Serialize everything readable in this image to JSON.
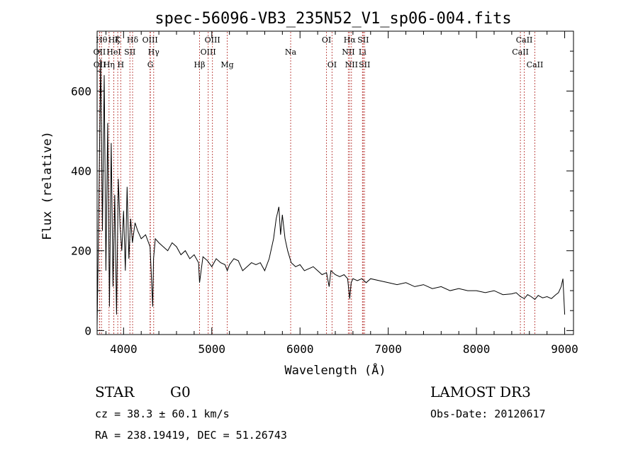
{
  "chart_data": {
    "type": "line",
    "title": "spec-56096-VB3_235N52_V1_sp06-004.fits",
    "xlabel": "Wavelength (Å)",
    "ylabel": "Flux (relative)",
    "xlim": [
      3700,
      9100
    ],
    "ylim": [
      -10,
      750
    ],
    "xticks": [
      4000,
      5000,
      6000,
      7000,
      8000,
      9000
    ],
    "yticks": [
      0,
      200,
      400,
      600
    ],
    "series": [
      {
        "name": "spectrum",
        "x": [
          3700,
          3720,
          3740,
          3760,
          3780,
          3800,
          3820,
          3840,
          3860,
          3880,
          3900,
          3920,
          3940,
          3960,
          3980,
          4000,
          4020,
          4040,
          4060,
          4080,
          4100,
          4130,
          4160,
          4200,
          4250,
          4300,
          4330,
          4340,
          4360,
          4400,
          4450,
          4500,
          4550,
          4600,
          4650,
          4700,
          4750,
          4800,
          4850,
          4861,
          4900,
          4950,
          5000,
          5050,
          5100,
          5150,
          5175,
          5200,
          5250,
          5300,
          5350,
          5400,
          5450,
          5500,
          5550,
          5600,
          5650,
          5700,
          5730,
          5760,
          5780,
          5800,
          5830,
          5860,
          5900,
          5950,
          6000,
          6050,
          6100,
          6150,
          6200,
          6250,
          6300,
          6330,
          6350,
          6400,
          6450,
          6500,
          6540,
          6563,
          6580,
          6600,
          6650,
          6700,
          6750,
          6800,
          6900,
          7000,
          7100,
          7200,
          7300,
          7400,
          7500,
          7600,
          7700,
          7800,
          7900,
          8000,
          8100,
          8200,
          8300,
          8400,
          8450,
          8500,
          8542,
          8580,
          8620,
          8662,
          8700,
          8750,
          8800,
          8850,
          8900,
          8930,
          8960,
          8980,
          9000
        ],
        "y": [
          10,
          320,
          680,
          250,
          640,
          150,
          520,
          60,
          470,
          110,
          340,
          40,
          380,
          260,
          200,
          300,
          150,
          360,
          180,
          280,
          220,
          270,
          250,
          230,
          240,
          210,
          60,
          180,
          230,
          220,
          210,
          200,
          220,
          210,
          190,
          200,
          180,
          190,
          170,
          120,
          185,
          175,
          160,
          180,
          170,
          165,
          150,
          165,
          180,
          175,
          150,
          160,
          170,
          165,
          170,
          150,
          180,
          230,
          280,
          310,
          240,
          290,
          230,
          200,
          170,
          160,
          165,
          150,
          155,
          160,
          150,
          140,
          145,
          110,
          150,
          140,
          135,
          140,
          130,
          80,
          120,
          130,
          125,
          130,
          120,
          130,
          125,
          120,
          115,
          120,
          110,
          115,
          105,
          110,
          100,
          105,
          100,
          100,
          95,
          100,
          90,
          92,
          95,
          85,
          80,
          90,
          85,
          78,
          88,
          82,
          85,
          80,
          90,
          95,
          110,
          130,
          40
        ]
      }
    ],
    "lines": [
      {
        "label": "OII",
        "wavelength": 3727,
        "row": 1
      },
      {
        "label": "OII",
        "wavelength": 3729,
        "row": 2
      },
      {
        "label": "Hθ",
        "wavelength": 3750,
        "row": 0
      },
      {
        "label": "Hη",
        "wavelength": 3835,
        "row": 2
      },
      {
        "label": "Hζ",
        "wavelength": 3889,
        "row": 0
      },
      {
        "label": "HeI",
        "wavelength": 3889,
        "row": 1
      },
      {
        "label": "K",
        "wavelength": 3934,
        "row": 0
      },
      {
        "label": "H",
        "wavelength": 3968,
        "row": 2
      },
      {
        "label": "SII",
        "wavelength": 4072,
        "row": 1
      },
      {
        "label": "Hδ",
        "wavelength": 4102,
        "row": 0
      },
      {
        "label": "OIII",
        "wavelength": 4300,
        "row": 0
      },
      {
        "label": "Hγ",
        "wavelength": 4341,
        "row": 1
      },
      {
        "label": "G",
        "wavelength": 4304,
        "row": 2
      },
      {
        "label": "Hβ",
        "wavelength": 4861,
        "row": 2
      },
      {
        "label": "OIII",
        "wavelength": 4959,
        "row": 1
      },
      {
        "label": "OIII",
        "wavelength": 5007,
        "row": 0
      },
      {
        "label": "Mg",
        "wavelength": 5175,
        "row": 2
      },
      {
        "label": "Na",
        "wavelength": 5894,
        "row": 1
      },
      {
        "label": "OI",
        "wavelength": 6300,
        "row": 0
      },
      {
        "label": "OI",
        "wavelength": 6363,
        "row": 2
      },
      {
        "label": "NII",
        "wavelength": 6548,
        "row": 1
      },
      {
        "label": "Hα",
        "wavelength": 6563,
        "row": 0
      },
      {
        "label": "NII",
        "wavelength": 6583,
        "row": 2
      },
      {
        "label": "Li",
        "wavelength": 6708,
        "row": 1
      },
      {
        "label": "SII",
        "wavelength": 6716,
        "row": 0
      },
      {
        "label": "SII",
        "wavelength": 6731,
        "row": 2
      },
      {
        "label": "CaII",
        "wavelength": 8498,
        "row": 1
      },
      {
        "label": "CaII",
        "wavelength": 8542,
        "row": 0
      },
      {
        "label": "CaII",
        "wavelength": 8662,
        "row": 2
      }
    ]
  },
  "info": {
    "class": "STAR",
    "subclass": "G0",
    "release": "LAMOST DR3",
    "cz": "cz = 38.3 ± 60.1 km/s",
    "obs_date": "Obs-Date: 20120617",
    "radec": "RA = 238.19419, DEC =  51.26743"
  },
  "colors": {
    "spectrum": "#000000",
    "line_marker": "#c0504d",
    "axes": "#000000"
  }
}
